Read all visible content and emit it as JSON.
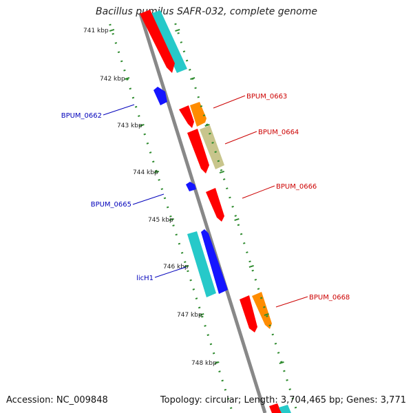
{
  "header": {
    "title": "Bacillus pumilus SAFR-032, complete genome"
  },
  "footer": {
    "accession": "Accession: NC_009848",
    "topology": "Topology: circular; Length: 3,704,465 bp; Genes: 3,771"
  },
  "colors": {
    "backbone": "#888888",
    "tick": "#2e8b2e",
    "forward_label": "#cc0000",
    "reverse_label": "#0000bb",
    "gene_red": "#ff0000",
    "gene_orange": "#ff8c00",
    "gene_cyan": "#26c9c9",
    "gene_khaki": "#c8c58c",
    "gene_blue": "#1515ff"
  },
  "map": {
    "kbp_labels": [
      "741 kbp",
      "742 kbp",
      "743 kbp",
      "744 kbp",
      "745 kbp",
      "746 kbp",
      "747 kbp",
      "748 kbp"
    ],
    "gene_labels": [
      {
        "text": "BPUM_0663",
        "strand": "forward"
      },
      {
        "text": "BPUM_0664",
        "strand": "forward"
      },
      {
        "text": "BPUM_0666",
        "strand": "forward"
      },
      {
        "text": "BPUM_0668",
        "strand": "forward"
      },
      {
        "text": "BPUM_0662",
        "strand": "reverse"
      },
      {
        "text": "BPUM_0665",
        "strand": "reverse"
      },
      {
        "text": "licH1",
        "strand": "reverse"
      }
    ]
  }
}
